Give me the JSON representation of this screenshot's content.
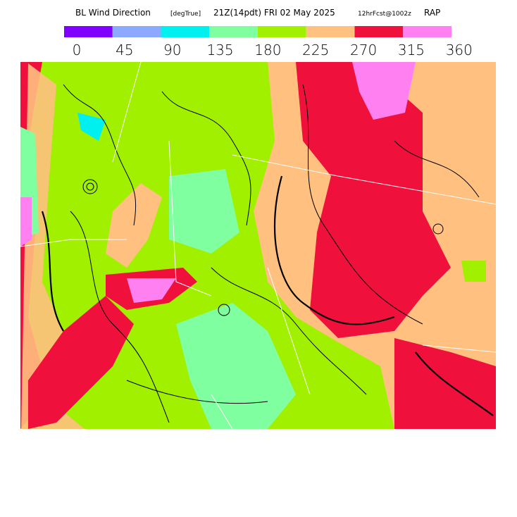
{
  "header": {
    "title": "BL Wind Direction",
    "units": "[degTrue]",
    "valid_time": "21Z(14pdt) FRI 02 May 2025",
    "forecast": "12hrFcst@1002z",
    "model": "RAP"
  },
  "legend": {
    "colors": [
      "#8000ff",
      "#8ca8ff",
      "#00f0f0",
      "#80ffa0",
      "#a0f000",
      "#ffc080",
      "#f0103c",
      "#ff80f0"
    ],
    "labels": [
      "0",
      "45",
      "90",
      "135",
      "180",
      "225",
      "270",
      "315",
      "360"
    ]
  }
}
